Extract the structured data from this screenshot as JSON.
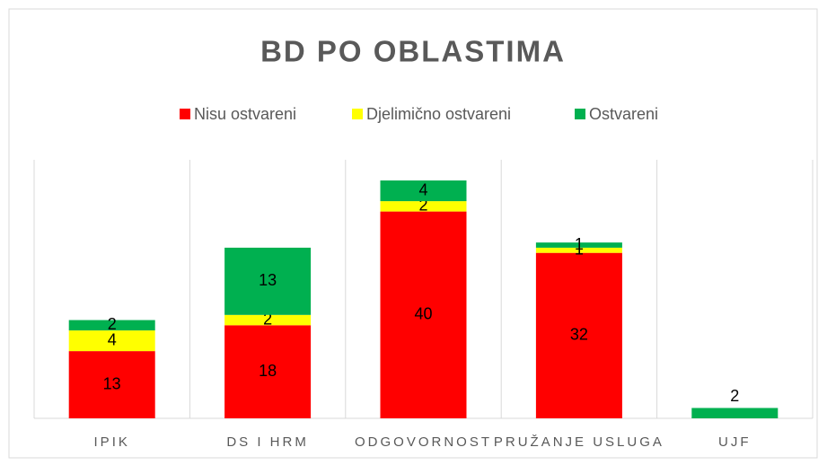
{
  "chart_data": {
    "type": "bar",
    "stacked": true,
    "title": "BD PO OBLASTIMA",
    "categories": [
      "IPIK",
      "DS I HRM",
      "ODGOVORNOST",
      "PRUŽANJE USLUGA",
      "UJF"
    ],
    "series": [
      {
        "name": "Nisu ostvareni",
        "color": "#ff0000",
        "values": [
          13,
          18,
          40,
          32,
          null
        ]
      },
      {
        "name": "Djelimično ostvareni",
        "color": "#ffff00",
        "values": [
          4,
          2,
          2,
          1,
          null
        ]
      },
      {
        "name": "Ostvareni",
        "color": "#00b050",
        "values": [
          2,
          13,
          4,
          1,
          2
        ]
      }
    ],
    "ylim": [
      0,
      50
    ],
    "legend": "top"
  }
}
